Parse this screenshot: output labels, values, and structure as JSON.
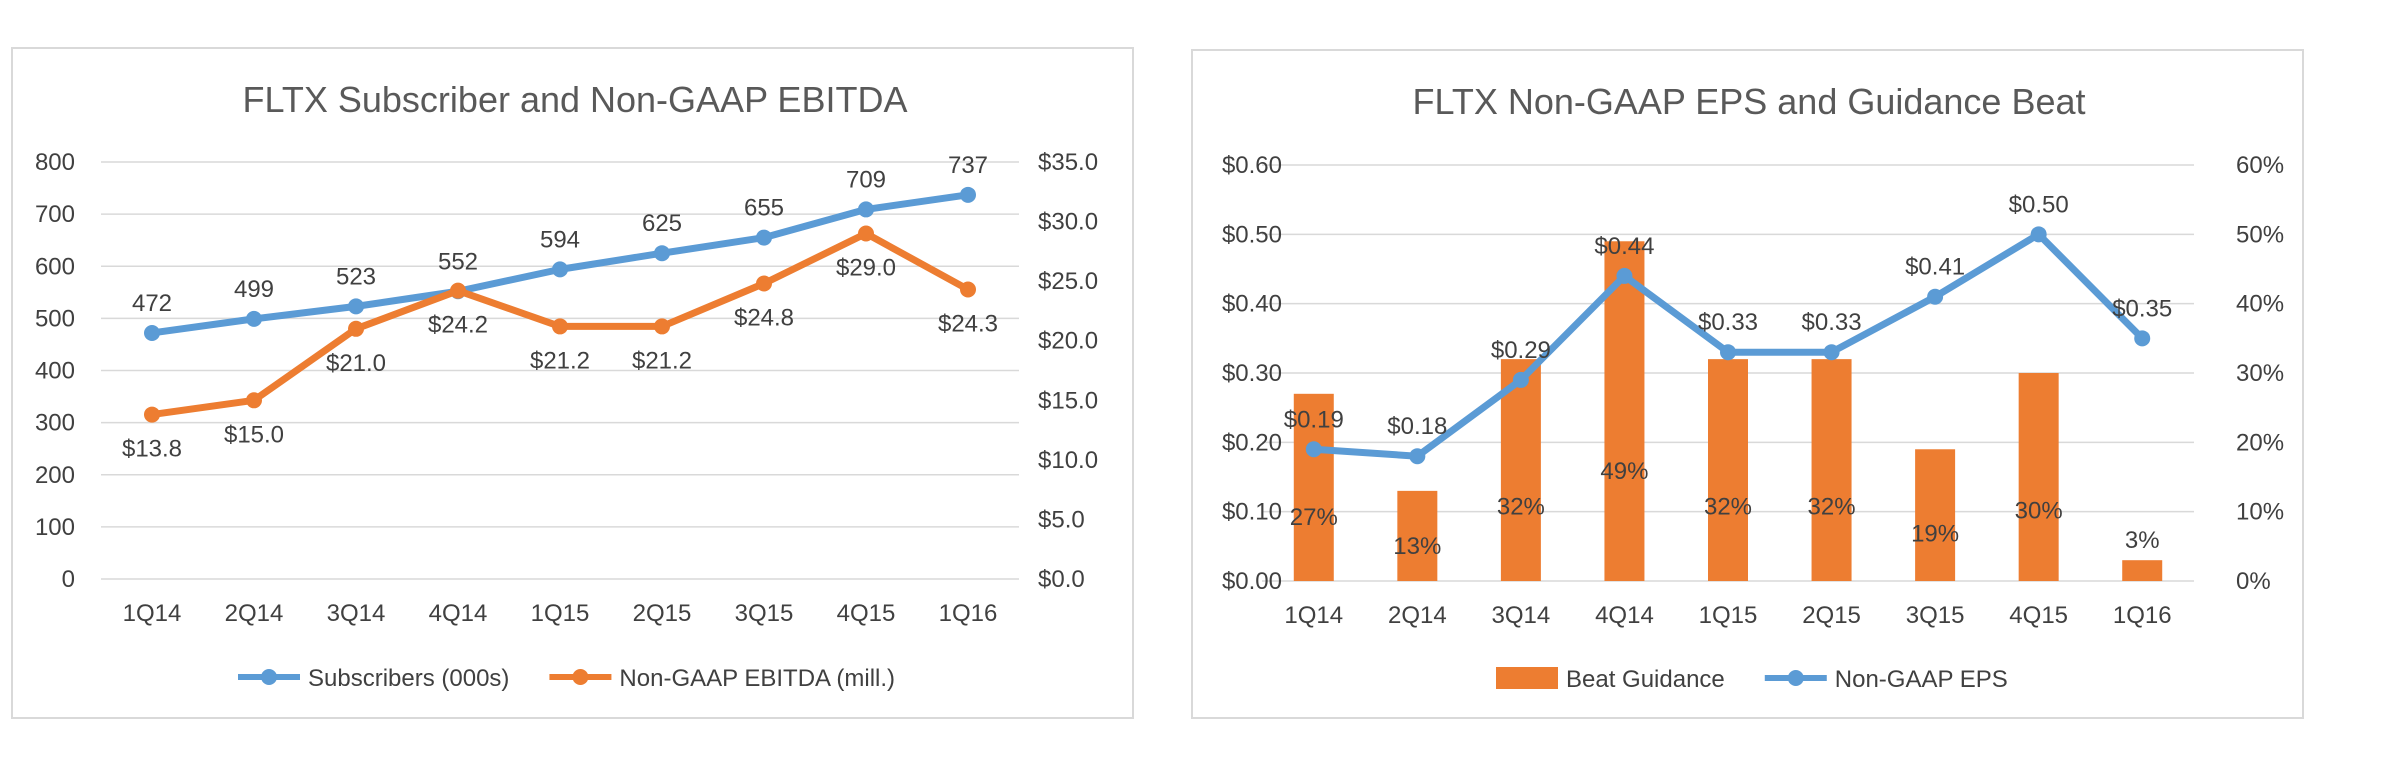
{
  "colors": {
    "blue": "#5b9bd5",
    "orange": "#ed7d31",
    "grid": "#d9d9d9",
    "text": "#404040",
    "title": "#595959"
  },
  "chart_data": [
    {
      "type": "line",
      "title": "FLTX Subscriber and Non-GAAP EBITDA",
      "categories": [
        "1Q14",
        "2Q14",
        "3Q14",
        "4Q14",
        "1Q15",
        "2Q15",
        "3Q15",
        "4Q15",
        "1Q16"
      ],
      "y_left": {
        "min": 0,
        "max": 800,
        "ticks": [
          "0",
          "100",
          "200",
          "300",
          "400",
          "500",
          "600",
          "700",
          "800"
        ]
      },
      "y_right": {
        "min": 0,
        "max": 35,
        "ticks": [
          "$0.0",
          "$5.0",
          "$10.0",
          "$15.0",
          "$20.0",
          "$25.0",
          "$30.0",
          "$35.0"
        ]
      },
      "grid": true,
      "legend_position": "bottom",
      "series": [
        {
          "name": "Subscribers (000s)",
          "axis": "left",
          "color": "#5b9bd5",
          "values": [
            472,
            499,
            523,
            552,
            594,
            625,
            655,
            709,
            737
          ],
          "labels": [
            "472",
            "499",
            "523",
            "552",
            "594",
            "625",
            "655",
            "709",
            "737"
          ]
        },
        {
          "name": "Non-GAAP EBITDA (mill.)",
          "axis": "right",
          "color": "#ed7d31",
          "values": [
            13.8,
            15.0,
            21.0,
            24.2,
            21.2,
            21.2,
            24.8,
            29.0,
            24.3
          ],
          "labels": [
            "$13.8",
            "$15.0",
            "$21.0",
            "$24.2",
            "$21.2",
            "$21.2",
            "$24.8",
            "$29.0",
            "$24.3"
          ]
        }
      ]
    },
    {
      "type": "bar",
      "title": "FLTX Non-GAAP EPS and Guidance Beat",
      "categories": [
        "1Q14",
        "2Q14",
        "3Q14",
        "4Q14",
        "1Q15",
        "2Q15",
        "3Q15",
        "4Q15",
        "1Q16"
      ],
      "y_left": {
        "min": 0,
        "max": 0.6,
        "ticks": [
          "$0.00",
          "$0.10",
          "$0.20",
          "$0.30",
          "$0.40",
          "$0.50",
          "$0.60"
        ]
      },
      "y_right": {
        "min": 0,
        "max": 60,
        "ticks": [
          "0%",
          "10%",
          "20%",
          "30%",
          "40%",
          "50%",
          "60%"
        ]
      },
      "grid": true,
      "legend_position": "bottom",
      "series": [
        {
          "name": "Beat Guidance",
          "type": "bar",
          "axis": "right",
          "color": "#ed7d31",
          "values": [
            27,
            13,
            32,
            49,
            32,
            32,
            19,
            30,
            3
          ],
          "labels": [
            "27%",
            "13%",
            "32%",
            "49%",
            "32%",
            "32%",
            "19%",
            "30%",
            "3%"
          ]
        },
        {
          "name": "Non-GAAP EPS",
          "type": "line",
          "axis": "left",
          "color": "#5b9bd5",
          "values": [
            0.19,
            0.18,
            0.29,
            0.44,
            0.33,
            0.33,
            0.41,
            0.5,
            0.35
          ],
          "labels": [
            "$0.19",
            "$0.18",
            "$0.29",
            "$0.44",
            "$0.33",
            "$0.33",
            "$0.41",
            "$0.50",
            "$0.35"
          ]
        }
      ]
    }
  ]
}
